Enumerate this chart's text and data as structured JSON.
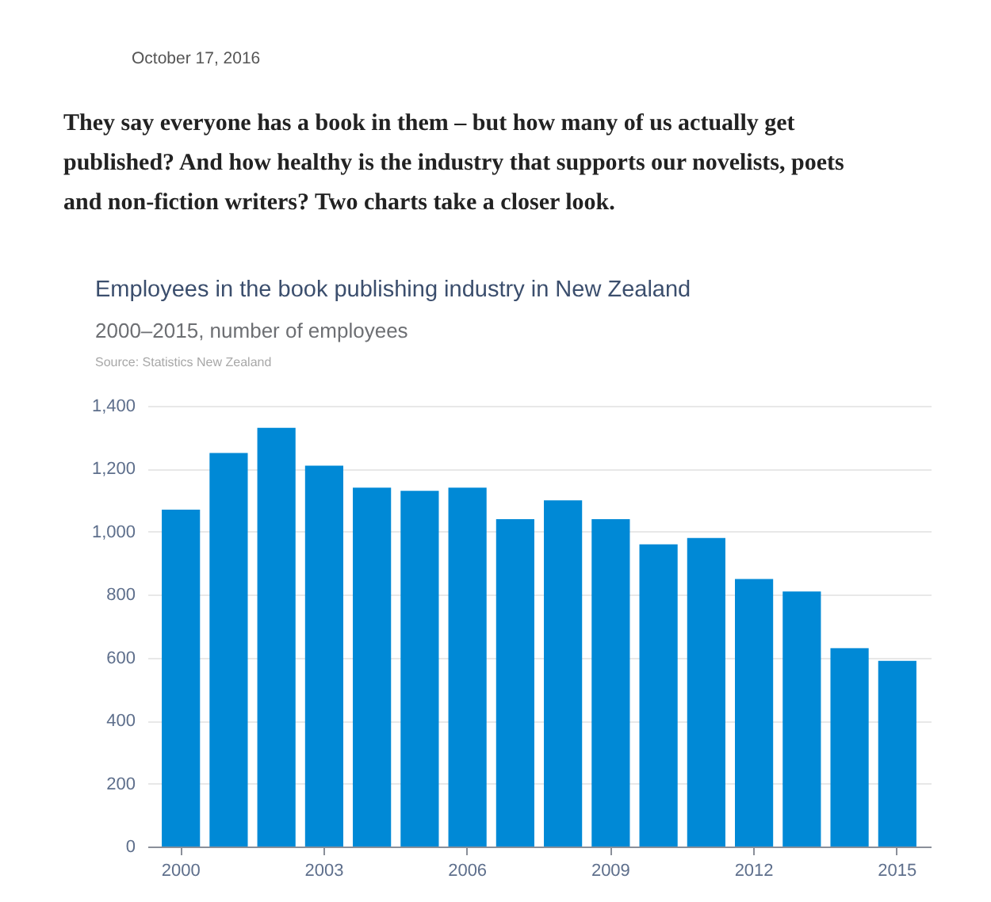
{
  "chart_data": {
    "type": "bar",
    "title": "Employees in the book publishing industry in New Zealand",
    "subtitle": "2000–2015, number of employees",
    "annotations": [
      "October 17, 2016",
      "They say everyone has a book in them – but how many of us actually get published? And how healthy is the industry that supports our novelists, poets and non-fiction writers? Two charts take a closer look.",
      "Source: Statistics New Zealand"
    ],
    "categories": [
      "2000",
      null,
      null,
      "2003",
      null,
      null,
      "2006",
      null,
      null,
      "2009",
      null,
      null,
      "2012",
      null,
      null,
      "2015"
    ],
    "values": [
      1070,
      1250,
      1330,
      1210,
      1140,
      1130,
      1140,
      1040,
      1100,
      1040,
      960,
      980,
      850,
      810,
      630,
      590
    ],
    "color": "#0089d6",
    "ylim": [
      0,
      1400
    ],
    "yticks": [
      0,
      200,
      400,
      600,
      800,
      {
        "value": 1000,
        "label": "1,000"
      },
      {
        "value": 1200,
        "label": "1,200"
      },
      {
        "value": 1400,
        "label": "1,400"
      }
    ],
    "grid": "y"
  }
}
